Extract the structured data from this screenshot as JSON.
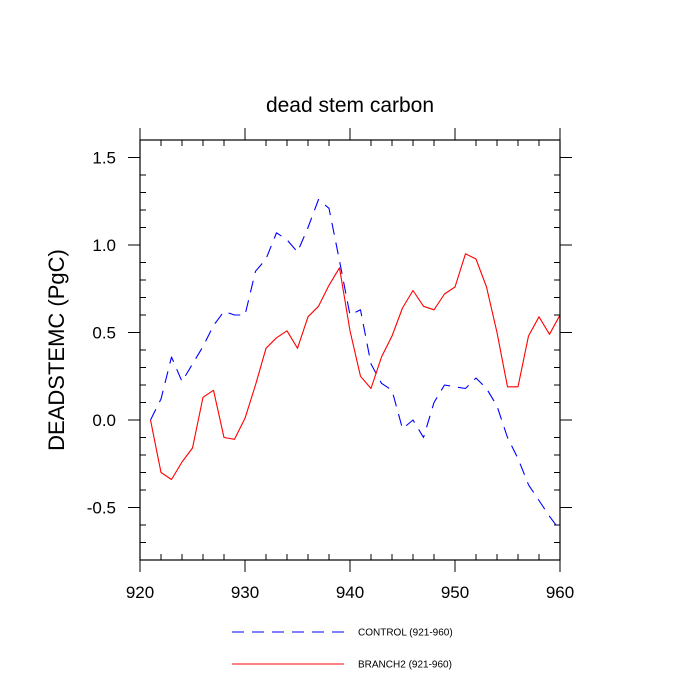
{
  "chart_data": {
    "type": "line",
    "title": "dead stem carbon",
    "xlabel": "",
    "ylabel": "DEADSTEMC  (PgC)",
    "xlim": [
      920,
      960
    ],
    "ylim": [
      -0.8,
      1.6
    ],
    "x_ticks": [
      920,
      930,
      940,
      950,
      960
    ],
    "y_ticks": [
      -0.5,
      0.0,
      0.5,
      1.0,
      1.5
    ],
    "x_tick_labels": [
      "920",
      "930",
      "940",
      "950",
      "960"
    ],
    "y_tick_labels": [
      "-0.5",
      "0.0",
      "0.5",
      "1.0",
      "1.5"
    ],
    "legend_position": "bottom",
    "grid": false,
    "x": [
      921,
      922,
      923,
      924,
      925,
      926,
      927,
      928,
      929,
      930,
      931,
      932,
      933,
      934,
      935,
      936,
      937,
      938,
      939,
      940,
      941,
      942,
      943,
      944,
      945,
      946,
      947,
      948,
      949,
      950,
      951,
      952,
      953,
      954,
      955,
      956,
      957,
      958,
      959,
      960
    ],
    "series": [
      {
        "name": "CONTROL (921-960)",
        "color": "#0000ff",
        "style": "dashed",
        "values": [
          0.0,
          0.12,
          0.36,
          0.22,
          0.32,
          0.42,
          0.54,
          0.62,
          0.6,
          0.6,
          0.85,
          0.92,
          1.07,
          1.03,
          0.96,
          1.1,
          1.26,
          1.21,
          0.91,
          0.6,
          0.63,
          0.32,
          0.21,
          0.17,
          -0.05,
          0.0,
          -0.1,
          0.1,
          0.2,
          0.19,
          0.18,
          0.24,
          0.18,
          0.08,
          -0.1,
          -0.22,
          -0.37,
          -0.46,
          -0.55,
          -0.63
        ]
      },
      {
        "name": "BRANCH2 (921-960)",
        "color": "#ff0000",
        "style": "solid",
        "values": [
          0.0,
          -0.3,
          -0.34,
          -0.24,
          -0.16,
          0.13,
          0.17,
          -0.1,
          -0.11,
          0.01,
          0.2,
          0.41,
          0.47,
          0.51,
          0.41,
          0.59,
          0.65,
          0.77,
          0.87,
          0.51,
          0.25,
          0.18,
          0.36,
          0.48,
          0.64,
          0.74,
          0.65,
          0.63,
          0.72,
          0.76,
          0.95,
          0.92,
          0.76,
          0.5,
          0.19,
          0.19,
          0.48,
          0.59,
          0.49,
          0.6
        ]
      }
    ]
  }
}
